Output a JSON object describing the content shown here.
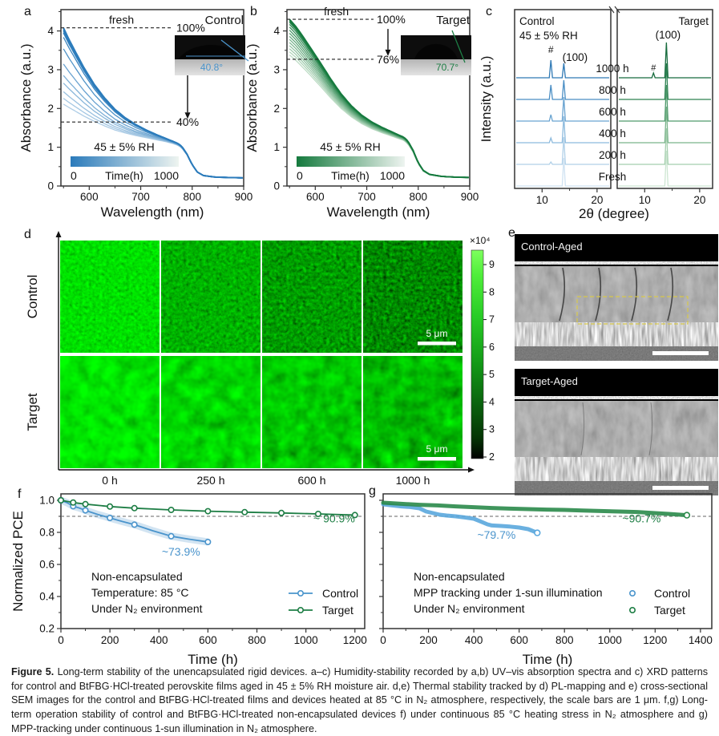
{
  "colors": {
    "blue": "#4a94cc",
    "blue_light": "#5aa7dd",
    "green": "#1e7e45",
    "green_g": "#2a8a4a",
    "axis": "#333333",
    "dash": "#555555",
    "pl_bright": "#55ee44",
    "sem_yellow": "#d8c84a"
  },
  "panels": {
    "a": {
      "letter": "a",
      "corner": "Control",
      "fresh": "fresh",
      "p100": "100%",
      "plow": "40%",
      "rh": "45 ± 5% RH",
      "cbar_left": "0",
      "cbar_label": "Time(h)",
      "cbar_right": "1000",
      "angle": "40.8°",
      "xlabel": "Wavelength (nm)",
      "ylabel": "Absorbance (a.u.)"
    },
    "b": {
      "letter": "b",
      "corner": "Target",
      "fresh": "fresh",
      "p100": "100%",
      "plow": "76%",
      "rh": "45 ± 5% RH",
      "cbar_left": "0",
      "cbar_label": "Time(h)",
      "cbar_right": "1000",
      "angle": "70.7°",
      "xlabel": "Wavelength (nm)",
      "ylabel": "Absorbance (a.u.)"
    },
    "c": {
      "letter": "c",
      "left_label": "Control",
      "rh": "45 ± 5% RH",
      "right_label": "Target",
      "hash": "#",
      "peak": "(100)",
      "times": [
        "1000 h",
        "800 h",
        "600 h",
        "400 h",
        "200 h",
        "Fresh"
      ],
      "xlabel": "2θ (degree)",
      "ylabel": "Intensity (a.u.)",
      "xticks": [
        10,
        20
      ]
    },
    "d": {
      "letter": "d",
      "rows": [
        "Control",
        "Target"
      ],
      "cols": [
        "0 h",
        "250 h",
        "600 h",
        "1000 h"
      ],
      "scalebar": "5 μm",
      "cbar_exp": "×10⁴",
      "cbar_ticks": [
        9,
        8,
        7,
        6,
        5,
        4,
        3,
        2
      ],
      "cells": [
        {
          "f": 0.24,
          "o": 3,
          "seed": 3,
          "A": 1.45,
          "E": 0.95
        },
        {
          "f": 0.24,
          "o": 3,
          "seed": 7,
          "A": 1.25,
          "E": 1.5
        },
        {
          "f": 0.24,
          "o": 3,
          "seed": 11,
          "A": 1.2,
          "E": 1.85
        },
        {
          "f": 0.24,
          "o": 3,
          "seed": 15,
          "A": 1.15,
          "E": 2.2
        },
        {
          "f": 0.055,
          "o": 3,
          "seed": 21,
          "A": 1.6,
          "E": 1.0
        },
        {
          "f": 0.055,
          "o": 3,
          "seed": 25,
          "A": 1.5,
          "E": 1.15
        },
        {
          "f": 0.055,
          "o": 3,
          "seed": 29,
          "A": 1.45,
          "E": 1.3
        },
        {
          "f": 0.055,
          "o": 3,
          "seed": 33,
          "A": 1.4,
          "E": 1.5
        }
      ]
    },
    "e": {
      "letter": "e",
      "labels": [
        "Control-Aged",
        "Target-Aged"
      ]
    },
    "f": {
      "letter": "f"
    },
    "g": {
      "letter": "g"
    }
  },
  "chart_data": [
    {
      "id": "a",
      "type": "line",
      "title": "Control film UV-vis aging",
      "xlabel": "Wavelength (nm)",
      "ylabel": "Absorbance (a.u.)",
      "xlim": [
        545,
        900
      ],
      "ylim": [
        0,
        4.55
      ],
      "xticks": [
        600,
        700,
        800,
        900
      ],
      "yticks": [
        0,
        1,
        2,
        3,
        4
      ],
      "dash_high": 4.08,
      "dash_low": 1.65,
      "fresh_curve": [
        [
          550,
          4.08
        ],
        [
          562,
          3.75
        ],
        [
          575,
          3.42
        ],
        [
          590,
          3.05
        ],
        [
          610,
          2.62
        ],
        [
          630,
          2.27
        ],
        [
          650,
          1.98
        ],
        [
          670,
          1.76
        ],
        [
          690,
          1.59
        ],
        [
          710,
          1.45
        ],
        [
          730,
          1.33
        ],
        [
          750,
          1.22
        ],
        [
          763,
          1.15
        ],
        [
          772,
          1.1
        ],
        [
          780,
          1.02
        ],
        [
          790,
          0.82
        ],
        [
          800,
          0.55
        ],
        [
          810,
          0.36
        ],
        [
          822,
          0.27
        ],
        [
          845,
          0.23
        ],
        [
          870,
          0.22
        ],
        [
          900,
          0.21
        ]
      ],
      "converged_curve": [
        [
          550,
          1.62
        ],
        [
          562,
          1.58
        ],
        [
          575,
          1.54
        ],
        [
          590,
          1.49
        ],
        [
          610,
          1.43
        ],
        [
          630,
          1.37
        ],
        [
          650,
          1.31
        ],
        [
          670,
          1.27
        ],
        [
          690,
          1.23
        ],
        [
          710,
          1.2
        ],
        [
          730,
          1.16
        ],
        [
          750,
          1.12
        ],
        [
          763,
          1.08
        ],
        [
          772,
          1.04
        ],
        [
          780,
          0.97
        ],
        [
          790,
          0.79
        ],
        [
          800,
          0.53
        ],
        [
          810,
          0.35
        ],
        [
          822,
          0.26
        ],
        [
          845,
          0.22
        ],
        [
          870,
          0.21
        ],
        [
          900,
          0.2
        ]
      ],
      "scales": [
        0.2,
        0.26,
        0.33,
        0.42,
        0.5,
        0.62,
        0.78,
        0.9,
        0.95,
        0.97,
        0.985,
        1
      ],
      "color_dark": "#2b7bbb",
      "color_light": "#cfe2f1"
    },
    {
      "id": "b",
      "type": "line",
      "title": "Target film UV-vis aging",
      "xlabel": "Wavelength (nm)",
      "ylabel": "Absorbance (a.u.)",
      "xlim": [
        545,
        900
      ],
      "ylim": [
        0,
        4.55
      ],
      "xticks": [
        600,
        700,
        800,
        900
      ],
      "yticks": [
        0,
        1,
        2,
        3,
        4
      ],
      "dash_high": 4.3,
      "dash_low": 3.27,
      "fresh_curve": [
        [
          550,
          4.3
        ],
        [
          562,
          4.12
        ],
        [
          575,
          3.88
        ],
        [
          590,
          3.58
        ],
        [
          610,
          3.18
        ],
        [
          630,
          2.76
        ],
        [
          650,
          2.38
        ],
        [
          670,
          2.07
        ],
        [
          690,
          1.83
        ],
        [
          710,
          1.65
        ],
        [
          730,
          1.51
        ],
        [
          750,
          1.39
        ],
        [
          763,
          1.31
        ],
        [
          772,
          1.26
        ],
        [
          780,
          1.16
        ],
        [
          790,
          0.92
        ],
        [
          800,
          0.6
        ],
        [
          810,
          0.4
        ],
        [
          822,
          0.3
        ],
        [
          845,
          0.25
        ],
        [
          870,
          0.23
        ],
        [
          900,
          0.22
        ]
      ],
      "converged_curve": [
        [
          550,
          3.3
        ],
        [
          562,
          3.17
        ],
        [
          575,
          3.0
        ],
        [
          590,
          2.8
        ],
        [
          610,
          2.52
        ],
        [
          630,
          2.23
        ],
        [
          650,
          1.97
        ],
        [
          670,
          1.76
        ],
        [
          690,
          1.59
        ],
        [
          710,
          1.46
        ],
        [
          730,
          1.36
        ],
        [
          750,
          1.27
        ],
        [
          763,
          1.21
        ],
        [
          772,
          1.17
        ],
        [
          780,
          1.08
        ],
        [
          790,
          0.87
        ],
        [
          800,
          0.57
        ],
        [
          810,
          0.38
        ],
        [
          822,
          0.29
        ],
        [
          845,
          0.24
        ],
        [
          870,
          0.225
        ],
        [
          900,
          0.215
        ]
      ],
      "scales": [
        0.08,
        0.16,
        0.24,
        0.32,
        0.4,
        0.48,
        0.56,
        0.64,
        0.72,
        0.8,
        0.87,
        0.93,
        0.97,
        1
      ],
      "color_dark": "#157a3e",
      "color_light": "#cde6d2"
    },
    {
      "id": "c",
      "type": "xrd",
      "xlabel": "2θ (degree)",
      "ylabel": "Intensity (a.u.)",
      "xlim": [
        5,
        22.5
      ],
      "xticks": [
        10,
        20
      ],
      "times": [
        "1000 h",
        "800 h",
        "600 h",
        "400 h",
        "200 h",
        "Fresh"
      ],
      "hash_pos": 11.6,
      "main_pos": 13.95,
      "control": {
        "hash_h": [
          22,
          18,
          8,
          6,
          3,
          0
        ],
        "main_h": [
          18,
          24,
          30,
          33,
          34,
          35
        ],
        "colors": [
          "#2f79b5",
          "#4a8ec4",
          "#69a3d0",
          "#8cbadd",
          "#b0d0e8",
          "#cfe2f2"
        ]
      },
      "target": {
        "hash_h": [
          6,
          0,
          0,
          0,
          0,
          0
        ],
        "main_h": [
          44,
          45,
          45,
          45,
          45,
          44
        ],
        "colors": [
          "#166b3d",
          "#2d8252",
          "#4f9a6c",
          "#7ab48b",
          "#a5cfae",
          "#cde6d2"
        ]
      }
    },
    {
      "id": "f",
      "type": "line",
      "xlabel": "Time (h)",
      "ylabel": "Normalized PCE",
      "xlim": [
        0,
        1240
      ],
      "ylim": [
        0.2,
        1.0
      ],
      "xticks": [
        0,
        200,
        400,
        600,
        800,
        1000,
        1200
      ],
      "yticks": [
        0.2,
        0.4,
        0.6,
        0.8,
        1.0
      ],
      "dash_y": 0.9,
      "series": [
        {
          "name": "Control",
          "color": "#4a94cc",
          "band": true,
          "markers": "every2",
          "points": [
            [
              0,
              1.0
            ],
            [
              25,
              0.985
            ],
            [
              50,
              0.963
            ],
            [
              75,
              0.952
            ],
            [
              100,
              0.937
            ],
            [
              150,
              0.912
            ],
            [
              200,
              0.89
            ],
            [
              250,
              0.868
            ],
            [
              300,
              0.848
            ],
            [
              375,
              0.81
            ],
            [
              450,
              0.776
            ],
            [
              525,
              0.757
            ],
            [
              600,
              0.74
            ]
          ]
        },
        {
          "name": "Target",
          "color": "#1e7e45",
          "band": false,
          "markers": "all",
          "points": [
            [
              0,
              1.0
            ],
            [
              50,
              0.986
            ],
            [
              100,
              0.976
            ],
            [
              200,
              0.961
            ],
            [
              300,
              0.951
            ],
            [
              450,
              0.94
            ],
            [
              600,
              0.932
            ],
            [
              750,
              0.926
            ],
            [
              900,
              0.921
            ],
            [
              1050,
              0.915
            ],
            [
              1200,
              0.908
            ]
          ]
        }
      ],
      "annotations": [
        {
          "text": "~73.9%",
          "x": 490,
          "y": 0.655,
          "color": "#4a94cc",
          "anchor": "middle"
        },
        {
          "text": "~ 90.9%",
          "x": 1200,
          "y": 0.862,
          "color": "#1e7e45",
          "anchor": "end"
        }
      ],
      "info": [
        "Non-encapsulated",
        "Temperature: 85 °C",
        "Under N₂ environment"
      ],
      "legend": {
        "style": "line-circle",
        "items": [
          {
            "label": "Control",
            "color": "#4a94cc"
          },
          {
            "label": "Target",
            "color": "#1e7e45"
          }
        ]
      }
    },
    {
      "id": "g",
      "type": "line",
      "xlabel": "Time (h)",
      "ylabel": "",
      "xlim": [
        0,
        1450
      ],
      "ylim": [
        0.2,
        1.0
      ],
      "xticks": [
        0,
        200,
        400,
        600,
        800,
        1000,
        1200,
        1400
      ],
      "yticks": [
        0.2,
        0.4,
        0.6,
        0.8,
        1.0
      ],
      "dash_y": 0.9,
      "series": [
        {
          "name": "Control",
          "color": "#5aa7dd",
          "thick": 5,
          "endmarker": true,
          "points": [
            [
              0,
              0.975
            ],
            [
              40,
              0.968
            ],
            [
              80,
              0.962
            ],
            [
              120,
              0.958
            ],
            [
              160,
              0.95
            ],
            [
              190,
              0.93
            ],
            [
              220,
              0.92
            ],
            [
              250,
              0.91
            ],
            [
              280,
              0.905
            ],
            [
              320,
              0.9
            ],
            [
              360,
              0.893
            ],
            [
              400,
              0.885
            ],
            [
              430,
              0.868
            ],
            [
              460,
              0.85
            ],
            [
              480,
              0.843
            ],
            [
              520,
              0.84
            ],
            [
              560,
              0.836
            ],
            [
              600,
              0.83
            ],
            [
              640,
              0.82
            ],
            [
              680,
              0.797
            ]
          ]
        },
        {
          "name": "Target",
          "color": "#2a8a4a",
          "thick": 5,
          "endmarker": true,
          "points": [
            [
              0,
              0.985
            ],
            [
              80,
              0.978
            ],
            [
              160,
              0.972
            ],
            [
              240,
              0.968
            ],
            [
              320,
              0.962
            ],
            [
              400,
              0.957
            ],
            [
              480,
              0.952
            ],
            [
              560,
              0.948
            ],
            [
              640,
              0.945
            ],
            [
              720,
              0.942
            ],
            [
              800,
              0.94
            ],
            [
              880,
              0.936
            ],
            [
              960,
              0.933
            ],
            [
              1040,
              0.93
            ],
            [
              1120,
              0.927
            ],
            [
              1200,
              0.92
            ],
            [
              1260,
              0.915
            ],
            [
              1310,
              0.91
            ],
            [
              1340,
              0.907
            ]
          ]
        }
      ],
      "annotations": [
        {
          "text": "~79.7%",
          "x": 500,
          "y": 0.76,
          "color": "#4a94cc",
          "anchor": "middle"
        },
        {
          "text": "~90.7%",
          "x": 1140,
          "y": 0.862,
          "color": "#1e7e45",
          "anchor": "middle"
        }
      ],
      "info": [
        "Non-encapsulated",
        "MPP tracking under 1-sun illumination",
        "Under N₂ environment"
      ],
      "legend": {
        "style": "circle",
        "items": [
          {
            "label": "Control",
            "color": "#4a94cc"
          },
          {
            "label": "Target",
            "color": "#1e7e45"
          }
        ]
      }
    }
  ],
  "caption": {
    "label": "Figure 5.",
    "text": "Long-term stability of the unencapsulated rigid devices. a–c) Humidity-stability recorded by a,b) UV–vis absorption spectra and c) XRD patterns for control and BtFBG·HCl-treated perovskite films aged in 45 ± 5% RH moisture air. d,e) Thermal stability tracked by d) PL-mapping and e) cross-sectional SEM images for the control and BtFBG·HCl-treated films and devices heated at 85 °C in N₂ atmosphere, respectively, the scale bars are 1 μm. f,g) Long-term operation stability of control and BtFBG·HCl-treated non-encapsulated devices f) under continuous 85 °C heating stress in N₂ atmosphere and g) MPP-tracking under continuous 1-sun illumination in N₂ atmosphere."
  }
}
